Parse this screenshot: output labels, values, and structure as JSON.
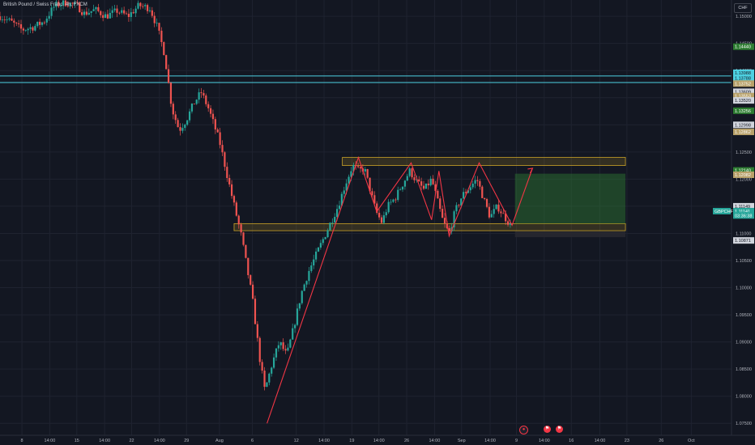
{
  "header": {
    "title": "British Pound / Swiss Franc, 4h, FXCM",
    "currency": "CHF"
  },
  "colors": {
    "background": "#131722",
    "up": "#26a69a",
    "down": "#ef5350",
    "drawing": "#f23645",
    "hline": "#4dd0e1",
    "zone": "#c9a227",
    "target": "#2e7d32"
  },
  "chart_data": {
    "type": "candlestick",
    "ylim": [
      1.0728,
      1.153
    ],
    "y_ticks": [
      "1.15000",
      "1.14500",
      "1.14000",
      "1.13500",
      "1.13000",
      "1.12500",
      "1.12000",
      "1.11500",
      "1.11000",
      "1.10500",
      "1.10000",
      "1.09500",
      "1.09000",
      "1.08500",
      "1.08000",
      "1.07500"
    ],
    "y_tick_values": [
      1.15,
      1.145,
      1.14,
      1.135,
      1.13,
      1.125,
      1.12,
      1.115,
      1.11,
      1.105,
      1.1,
      1.095,
      1.09,
      1.085,
      1.08,
      1.075
    ],
    "x_ticks": [
      {
        "label": "8",
        "pos": 0.03
      },
      {
        "label": "14:00",
        "pos": 0.068
      },
      {
        "label": "15",
        "pos": 0.105
      },
      {
        "label": "14:00",
        "pos": 0.143
      },
      {
        "label": "22",
        "pos": 0.18
      },
      {
        "label": "14:00",
        "pos": 0.218
      },
      {
        "label": "29",
        "pos": 0.255
      },
      {
        "label": "Aug",
        "pos": 0.3
      },
      {
        "label": "6",
        "pos": 0.345
      },
      {
        "label": "12",
        "pos": 0.405
      },
      {
        "label": "14:00",
        "pos": 0.443
      },
      {
        "label": "19",
        "pos": 0.481
      },
      {
        "label": "14:00",
        "pos": 0.518
      },
      {
        "label": "26",
        "pos": 0.556
      },
      {
        "label": "14:00",
        "pos": 0.594
      },
      {
        "label": "Sep",
        "pos": 0.631
      },
      {
        "label": "14:00",
        "pos": 0.67
      },
      {
        "label": "9",
        "pos": 0.706
      },
      {
        "label": "14:00",
        "pos": 0.744
      },
      {
        "label": "16",
        "pos": 0.781
      },
      {
        "label": "14:00",
        "pos": 0.82
      },
      {
        "label": "23",
        "pos": 0.857
      },
      {
        "label": "26",
        "pos": 0.904
      },
      {
        "label": "Oct",
        "pos": 0.945
      }
    ],
    "price_path": [
      [
        0.0,
        1.15
      ],
      [
        0.015,
        1.149
      ],
      [
        0.03,
        1.1475
      ],
      [
        0.045,
        1.148
      ],
      [
        0.06,
        1.149
      ],
      [
        0.075,
        1.152
      ],
      [
        0.09,
        1.1525
      ],
      [
        0.105,
        1.152
      ],
      [
        0.115,
        1.1505
      ],
      [
        0.13,
        1.1512
      ],
      [
        0.145,
        1.15
      ],
      [
        0.16,
        1.151
      ],
      [
        0.175,
        1.15
      ],
      [
        0.19,
        1.152
      ],
      [
        0.205,
        1.1515
      ],
      [
        0.215,
        1.148
      ],
      [
        0.225,
        1.143
      ],
      [
        0.235,
        1.133
      ],
      [
        0.245,
        1.129
      ],
      [
        0.255,
        1.131
      ],
      [
        0.265,
        1.134
      ],
      [
        0.275,
        1.136
      ],
      [
        0.285,
        1.133
      ],
      [
        0.3,
        1.127
      ],
      [
        0.315,
        1.118
      ],
      [
        0.33,
        1.1095
      ],
      [
        0.345,
        1.098
      ],
      [
        0.355,
        1.087
      ],
      [
        0.362,
        1.081
      ],
      [
        0.372,
        1.086
      ],
      [
        0.382,
        1.09
      ],
      [
        0.392,
        1.0875
      ],
      [
        0.402,
        1.093
      ],
      [
        0.412,
        1.099
      ],
      [
        0.422,
        1.103
      ],
      [
        0.432,
        1.106
      ],
      [
        0.442,
        1.109
      ],
      [
        0.452,
        1.112
      ],
      [
        0.462,
        1.115
      ],
      [
        0.472,
        1.119
      ],
      [
        0.482,
        1.1225
      ],
      [
        0.49,
        1.1215
      ],
      [
        0.498,
        1.122
      ],
      [
        0.506,
        1.118
      ],
      [
        0.514,
        1.114
      ],
      [
        0.522,
        1.112
      ],
      [
        0.53,
        1.115
      ],
      [
        0.54,
        1.1165
      ],
      [
        0.55,
        1.119
      ],
      [
        0.56,
        1.1215
      ],
      [
        0.57,
        1.1195
      ],
      [
        0.58,
        1.118
      ],
      [
        0.59,
        1.12
      ],
      [
        0.598,
        1.116
      ],
      [
        0.606,
        1.112
      ],
      [
        0.614,
        1.11
      ],
      [
        0.622,
        1.114
      ],
      [
        0.632,
        1.117
      ],
      [
        0.642,
        1.1185
      ],
      [
        0.652,
        1.12
      ],
      [
        0.662,
        1.116
      ],
      [
        0.67,
        1.113
      ],
      [
        0.68,
        1.115
      ],
      [
        0.69,
        1.113
      ],
      [
        0.698,
        1.1115
      ]
    ],
    "pattern_path": [
      [
        0.365,
        1.075
      ],
      [
        0.49,
        1.124
      ],
      [
        0.515,
        1.114
      ],
      [
        0.562,
        1.123
      ],
      [
        0.59,
        1.1125
      ],
      [
        0.6,
        1.1215
      ],
      [
        0.614,
        1.1095
      ],
      [
        0.655,
        1.123
      ],
      [
        0.7,
        1.1115
      ],
      [
        0.728,
        1.122
      ]
    ],
    "horizontal_lines": [
      1.139,
      1.1378
    ],
    "resistance_zone": {
      "x0": 0.468,
      "x1": 0.855,
      "top": 1.124,
      "bottom": 1.1225
    },
    "support_zone": {
      "x0": 0.32,
      "x1": 0.855,
      "top": 1.1118,
      "bottom": 1.1105
    },
    "target_box": {
      "x0": 0.704,
      "x1": 0.855,
      "top": 1.121,
      "bottom": 1.1118
    },
    "stop_box": {
      "x0": 0.704,
      "x1": 0.855,
      "top": 1.1104,
      "bottom": 1.1093
    },
    "price_badges": [
      {
        "label": "1.14440",
        "value": 1.1444,
        "color": "#2e7d32"
      },
      {
        "label": "1.13988",
        "value": 1.1396,
        "color": "#4dd0e1"
      },
      {
        "label": "1.13788",
        "value": 1.1386,
        "color": "#4dd0e1"
      },
      {
        "label": "1.13752",
        "value": 1.1376,
        "color": "#b8a16a"
      },
      {
        "label": "1.13609",
        "value": 1.1361,
        "color": "#d1d4dc"
      },
      {
        "label": "1.13553",
        "value": 1.1353,
        "color": "#b8a16a"
      },
      {
        "label": "1.13520",
        "value": 1.1345,
        "color": "#d1d4dc"
      },
      {
        "label": "1.13256",
        "value": 1.1326,
        "color": "#2e7d32"
      },
      {
        "label": "1.12998",
        "value": 1.13,
        "color": "#d1d4dc"
      },
      {
        "label": "1.12862",
        "value": 1.1287,
        "color": "#b8a16a"
      },
      {
        "label": "1.12140",
        "value": 1.1216,
        "color": "#2e7d32"
      },
      {
        "label": "1.12082",
        "value": 1.1208,
        "color": "#b8a16a"
      },
      {
        "label": "1.11149",
        "value": 1.115,
        "color": "#d1d4dc"
      },
      {
        "label": "1.11141",
        "value": 1.1141,
        "color": "#26a69a"
      },
      {
        "label": "03:36:38",
        "value": 1.1133,
        "color": "#26a69a"
      },
      {
        "label": "1.10871",
        "value": 1.1087,
        "color": "#d1d4dc"
      }
    ],
    "symbol_tag": {
      "label": "GBPCHF",
      "value": 1.1141
    }
  }
}
